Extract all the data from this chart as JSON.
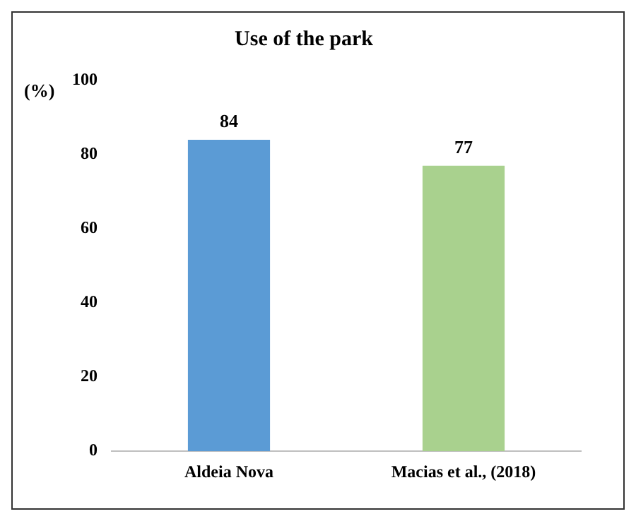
{
  "chart_data": {
    "type": "bar",
    "title": "Use of the park",
    "ylabel": "(%)",
    "categories": [
      "Aldeia Nova",
      "Macias et al., (2018)"
    ],
    "values": [
      84,
      77
    ],
    "colors": [
      "#5b9bd5",
      "#a9d18e"
    ],
    "ylim": [
      0,
      100
    ],
    "yticks": [
      0,
      20,
      40,
      60,
      80,
      100
    ],
    "grid": false,
    "legend": false,
    "data_labels": true
  }
}
